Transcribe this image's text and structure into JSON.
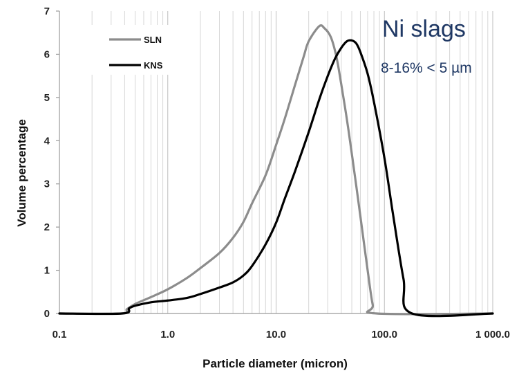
{
  "chart_data": {
    "type": "line",
    "x_scale": "log",
    "xlim": [
      0.1,
      1000
    ],
    "ylim": [
      0,
      7
    ],
    "xlabel": "Particle diameter (micron)",
    "ylabel": "Volume percentage",
    "x_ticks": [
      0.1,
      1,
      10,
      100,
      1000
    ],
    "x_tick_labels": [
      "0.1",
      "1.0",
      "10.0",
      "100.0",
      "1 000.0"
    ],
    "y_ticks": [
      0,
      1,
      2,
      3,
      4,
      5,
      6,
      7
    ],
    "y_tick_labels": [
      "0",
      "1",
      "2",
      "3",
      "4",
      "5",
      "6",
      "7"
    ],
    "grid": "vertical minor and major lines on log x-axis",
    "legend_position": "top-left",
    "annotations": [
      {
        "text": "Ni slags"
      },
      {
        "text": "8-16% < 5 µm"
      }
    ],
    "series": [
      {
        "name": "SLN",
        "color": "#8c8c8c",
        "x": [
          0.1,
          0.37,
          0.42,
          0.5,
          0.7,
          1.0,
          1.5,
          2.0,
          3.0,
          4.0,
          5.0,
          6.0,
          8.0,
          10.0,
          12.0,
          15.0,
          18.0,
          20.0,
          25.0,
          28.0,
          32.0,
          36.0,
          40.0,
          45.0,
          50.0,
          55.0,
          60.0,
          70.0,
          78.0,
          85.0,
          1000.0
        ],
        "y": [
          0,
          0,
          0.1,
          0.22,
          0.38,
          0.56,
          0.82,
          1.05,
          1.4,
          1.75,
          2.12,
          2.55,
          3.2,
          3.9,
          4.5,
          5.3,
          5.95,
          6.3,
          6.65,
          6.6,
          6.4,
          5.95,
          5.3,
          4.5,
          3.7,
          2.95,
          2.25,
          1.0,
          0.2,
          0,
          0
        ]
      },
      {
        "name": "KNS",
        "color": "#000000",
        "x": [
          0.1,
          0.38,
          0.44,
          0.5,
          0.7,
          1.0,
          1.5,
          2.0,
          3.0,
          4.0,
          5.0,
          6.0,
          8.0,
          10.0,
          12.0,
          15.0,
          20.0,
          25.0,
          30.0,
          35.0,
          40.0,
          45.0,
          50.0,
          55.0,
          60.0,
          70.0,
          80.0,
          100.0,
          120.0,
          150.0,
          180.0,
          1000.0
        ],
        "y": [
          0,
          0,
          0.12,
          0.18,
          0.26,
          0.3,
          0.36,
          0.45,
          0.6,
          0.72,
          0.88,
          1.1,
          1.6,
          2.1,
          2.65,
          3.3,
          4.2,
          4.95,
          5.5,
          5.9,
          6.15,
          6.3,
          6.32,
          6.25,
          6.05,
          5.55,
          4.9,
          3.6,
          2.3,
          0.8,
          0,
          0
        ]
      }
    ]
  }
}
